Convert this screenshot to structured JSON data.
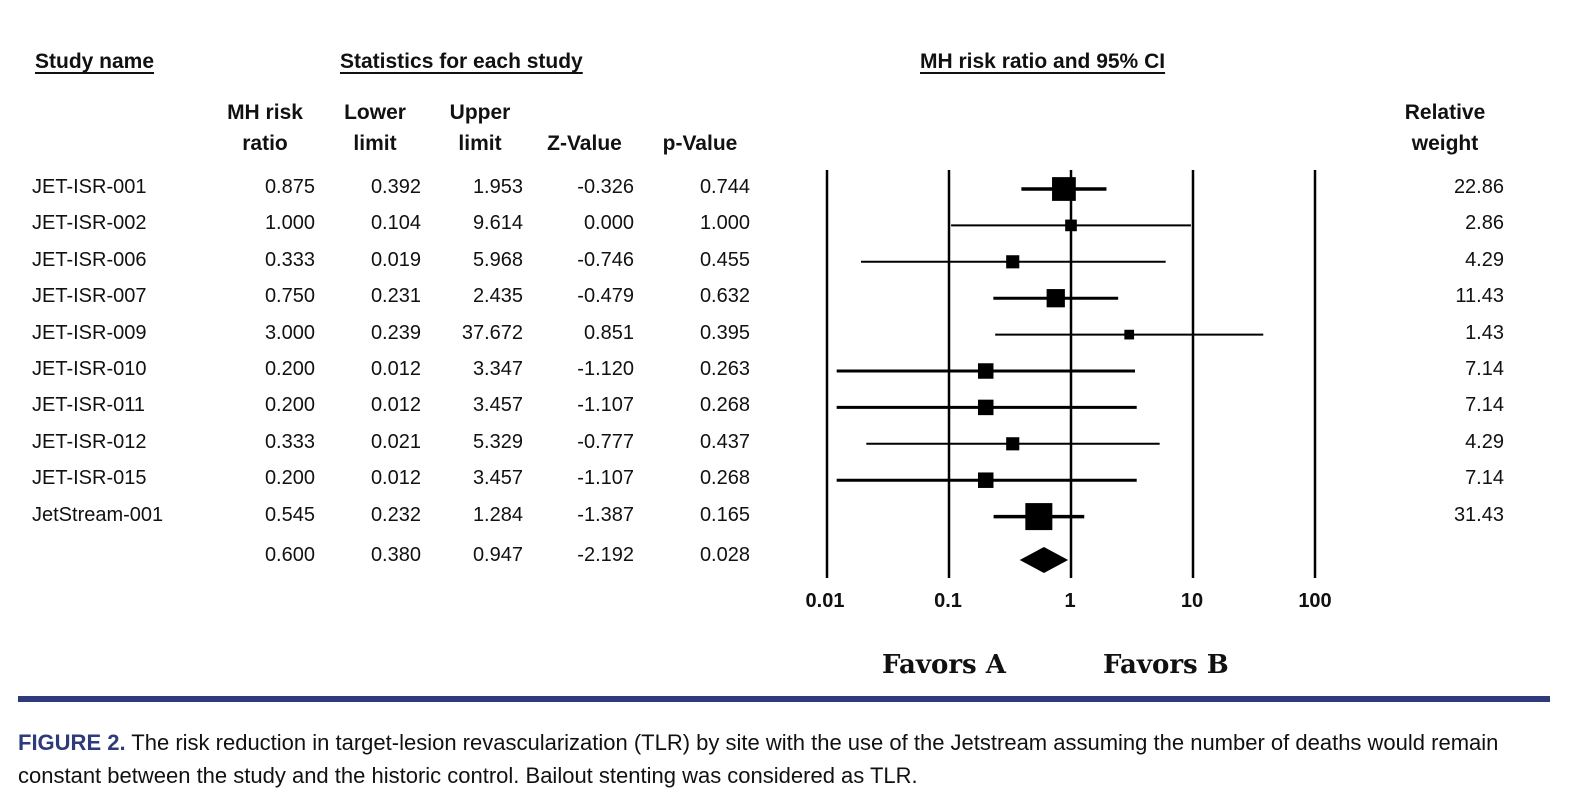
{
  "headers": {
    "study_name": "Study name",
    "statistics": "Statistics for each study",
    "ci": "MH risk ratio and 95% CI",
    "columns": [
      [
        "MH risk",
        "ratio"
      ],
      [
        "Lower",
        "limit"
      ],
      [
        "Upper",
        "limit"
      ],
      [
        "Z-Value"
      ],
      [
        "p-Value"
      ]
    ],
    "relative_weight": [
      "Relative",
      "weight"
    ]
  },
  "rows": [
    {
      "study": "JET-ISR-001",
      "rr": "0.875",
      "lower": "0.392",
      "upper": "1.953",
      "z": "-0.326",
      "p": "0.744",
      "weight": "22.86"
    },
    {
      "study": "JET-ISR-002",
      "rr": "1.000",
      "lower": "0.104",
      "upper": "9.614",
      "z": "0.000",
      "p": "1.000",
      "weight": "2.86"
    },
    {
      "study": "JET-ISR-006",
      "rr": "0.333",
      "lower": "0.019",
      "upper": "5.968",
      "z": "-0.746",
      "p": "0.455",
      "weight": "4.29"
    },
    {
      "study": "JET-ISR-007",
      "rr": "0.750",
      "lower": "0.231",
      "upper": "2.435",
      "z": "-0.479",
      "p": "0.632",
      "weight": "11.43"
    },
    {
      "study": "JET-ISR-009",
      "rr": "3.000",
      "lower": "0.239",
      "upper": "37.672",
      "z": "0.851",
      "p": "0.395",
      "weight": "1.43"
    },
    {
      "study": "JET-ISR-010",
      "rr": "0.200",
      "lower": "0.012",
      "upper": "3.347",
      "z": "-1.120",
      "p": "0.263",
      "weight": "7.14"
    },
    {
      "study": "JET-ISR-011",
      "rr": "0.200",
      "lower": "0.012",
      "upper": "3.457",
      "z": "-1.107",
      "p": "0.268",
      "weight": "7.14"
    },
    {
      "study": "JET-ISR-012",
      "rr": "0.333",
      "lower": "0.021",
      "upper": "5.329",
      "z": "-0.777",
      "p": "0.437",
      "weight": "4.29"
    },
    {
      "study": "JET-ISR-015",
      "rr": "0.200",
      "lower": "0.012",
      "upper": "3.457",
      "z": "-1.107",
      "p": "0.268",
      "weight": "7.14"
    },
    {
      "study": "JetStream-001",
      "rr": "0.545",
      "lower": "0.232",
      "upper": "1.284",
      "z": "-1.387",
      "p": "0.165",
      "weight": "31.43"
    }
  ],
  "summary": {
    "rr": "0.600",
    "lower": "0.380",
    "upper": "0.947",
    "z": "-2.192",
    "p": "0.028"
  },
  "axis": {
    "ticks": [
      "0.01",
      "0.1",
      "1",
      "10",
      "100"
    ],
    "favors_a": "Favors A",
    "favors_b": "Favors B"
  },
  "caption": {
    "label": "FIGURE 2.",
    "text": "The risk reduction in target-lesion revascularization (TLR) by site with the use of the Jetstream assuming the number of deaths would remain constant between the study and the historic control. Bailout stenting was considered as TLR."
  },
  "colors": {
    "accent": "#2e3a7a",
    "ink": "#000000"
  },
  "chart_data": {
    "type": "forest",
    "title": "MH risk ratio and 95% CI",
    "x_scale": "log",
    "xlim": [
      0.01,
      100
    ],
    "studies": [
      {
        "name": "JET-ISR-001",
        "rr": 0.875,
        "lower": 0.392,
        "upper": 1.953,
        "weight": 22.86
      },
      {
        "name": "JET-ISR-002",
        "rr": 1.0,
        "lower": 0.104,
        "upper": 9.614,
        "weight": 2.86
      },
      {
        "name": "JET-ISR-006",
        "rr": 0.333,
        "lower": 0.019,
        "upper": 5.968,
        "weight": 4.29
      },
      {
        "name": "JET-ISR-007",
        "rr": 0.75,
        "lower": 0.231,
        "upper": 2.435,
        "weight": 11.43
      },
      {
        "name": "JET-ISR-009",
        "rr": 3.0,
        "lower": 0.239,
        "upper": 37.672,
        "weight": 1.43
      },
      {
        "name": "JET-ISR-010",
        "rr": 0.2,
        "lower": 0.012,
        "upper": 3.347,
        "weight": 7.14
      },
      {
        "name": "JET-ISR-011",
        "rr": 0.2,
        "lower": 0.012,
        "upper": 3.457,
        "weight": 7.14
      },
      {
        "name": "JET-ISR-012",
        "rr": 0.333,
        "lower": 0.021,
        "upper": 5.329,
        "weight": 4.29
      },
      {
        "name": "JET-ISR-015",
        "rr": 0.2,
        "lower": 0.012,
        "upper": 3.457,
        "weight": 7.14
      },
      {
        "name": "JetStream-001",
        "rr": 0.545,
        "lower": 0.232,
        "upper": 1.284,
        "weight": 31.43
      }
    ],
    "pooled": {
      "rr": 0.6,
      "lower": 0.38,
      "upper": 0.947
    }
  }
}
